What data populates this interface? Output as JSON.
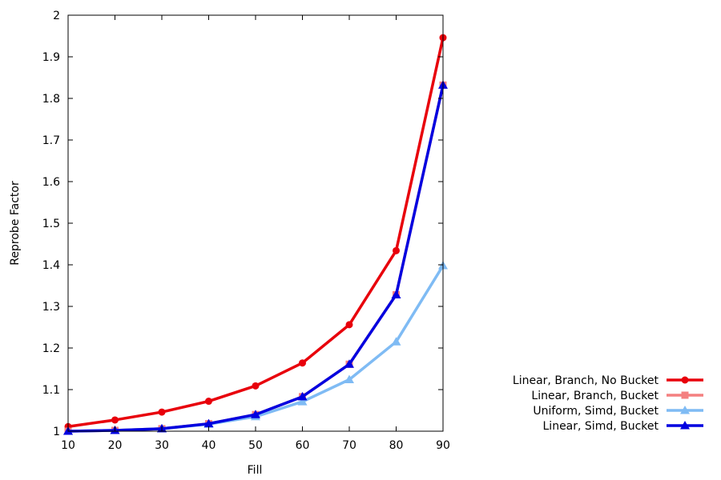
{
  "chart_data": {
    "type": "line",
    "title": "",
    "xlabel": "Fill",
    "ylabel": "Reprobe Factor",
    "x": [
      10,
      20,
      30,
      40,
      50,
      60,
      70,
      80,
      90
    ],
    "xlim": [
      10,
      90
    ],
    "ylim": [
      1,
      2
    ],
    "xticks": [
      "10",
      "20",
      "30",
      "40",
      "50",
      "60",
      "70",
      "80",
      "90"
    ],
    "yticks": [
      "1",
      "1.1",
      "1.2",
      "1.3",
      "1.4",
      "1.5",
      "1.6",
      "1.7",
      "1.8",
      "1.9",
      "2"
    ],
    "grid": false,
    "legend_position": "right",
    "series": [
      {
        "name": "Linear, Branch, No Bucket",
        "color": "#e8000b",
        "marker": "circle",
        "values": [
          1.011,
          1.027,
          1.046,
          1.072,
          1.109,
          1.164,
          1.256,
          1.434,
          1.946
        ]
      },
      {
        "name": "Linear, Branch, Bucket",
        "color": "#f48080",
        "marker": "square",
        "values": [
          1.0,
          1.002,
          1.006,
          1.018,
          1.04,
          1.083,
          1.161,
          1.328,
          1.832
        ]
      },
      {
        "name": "Uniform, Simd, Bucket",
        "color": "#7fbbf4",
        "marker": "triangle",
        "values": [
          1.0,
          1.002,
          1.006,
          1.017,
          1.035,
          1.071,
          1.124,
          1.215,
          1.398
        ]
      },
      {
        "name": "Linear, Simd, Bucket",
        "color": "#0000e0",
        "marker": "triangle",
        "values": [
          1.0,
          1.002,
          1.006,
          1.018,
          1.04,
          1.083,
          1.161,
          1.328,
          1.832
        ]
      }
    ]
  }
}
